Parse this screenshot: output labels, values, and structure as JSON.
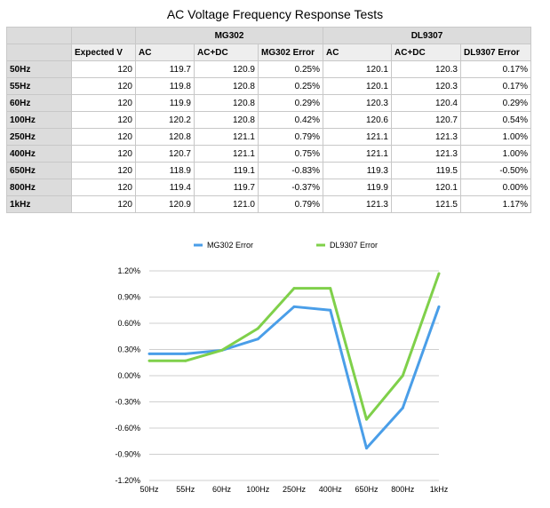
{
  "page": {
    "title": "AC Voltage Frequency Response Tests"
  },
  "table": {
    "group_headers": [
      "MG302",
      "DL9307"
    ],
    "columns": [
      "Expected V",
      "AC",
      "AC+DC",
      "MG302 Error",
      "AC",
      "AC+DC",
      "DL9307 Error"
    ],
    "rows": [
      {
        "label": "50Hz",
        "cells": [
          "120",
          "119.7",
          "120.9",
          "0.25%",
          "120.1",
          "120.3",
          "0.17%"
        ]
      },
      {
        "label": "55Hz",
        "cells": [
          "120",
          "119.8",
          "120.8",
          "0.25%",
          "120.1",
          "120.3",
          "0.17%"
        ]
      },
      {
        "label": "60Hz",
        "cells": [
          "120",
          "119.9",
          "120.8",
          "0.29%",
          "120.3",
          "120.4",
          "0.29%"
        ]
      },
      {
        "label": "100Hz",
        "cells": [
          "120",
          "120.2",
          "120.8",
          "0.42%",
          "120.6",
          "120.7",
          "0.54%"
        ]
      },
      {
        "label": "250Hz",
        "cells": [
          "120",
          "120.8",
          "121.1",
          "0.79%",
          "121.1",
          "121.3",
          "1.00%"
        ]
      },
      {
        "label": "400Hz",
        "cells": [
          "120",
          "120.7",
          "121.1",
          "0.75%",
          "121.1",
          "121.3",
          "1.00%"
        ]
      },
      {
        "label": "650Hz",
        "cells": [
          "120",
          "118.9",
          "119.1",
          "-0.83%",
          "119.3",
          "119.5",
          "-0.50%"
        ]
      },
      {
        "label": "800Hz",
        "cells": [
          "120",
          "119.4",
          "119.7",
          "-0.37%",
          "119.9",
          "120.1",
          "0.00%"
        ]
      },
      {
        "label": "1kHz",
        "cells": [
          "120",
          "120.9",
          "121.0",
          "0.79%",
          "121.3",
          "121.5",
          "1.17%"
        ]
      }
    ]
  },
  "chart_data": {
    "type": "line",
    "title": "",
    "xlabel": "",
    "ylabel": "",
    "categories": [
      "50Hz",
      "55Hz",
      "60Hz",
      "100Hz",
      "250Hz",
      "400Hz",
      "650Hz",
      "800Hz",
      "1kHz"
    ],
    "series": [
      {
        "name": "MG302 Error",
        "color": "#4a9ee8",
        "values": [
          0.25,
          0.25,
          0.29,
          0.42,
          0.79,
          0.75,
          -0.83,
          -0.37,
          0.79
        ]
      },
      {
        "name": "DL9307 Error",
        "color": "#7fd04a",
        "values": [
          0.17,
          0.17,
          0.29,
          0.54,
          1.0,
          1.0,
          -0.5,
          0.0,
          1.17
        ]
      }
    ],
    "ylim": [
      -1.2,
      1.2
    ],
    "yticks": [
      "1.20%",
      "0.90%",
      "0.60%",
      "0.30%",
      "0.00%",
      "-0.30%",
      "-0.60%",
      "-0.90%",
      "-1.20%"
    ],
    "legend_position": "top",
    "grid": true
  }
}
